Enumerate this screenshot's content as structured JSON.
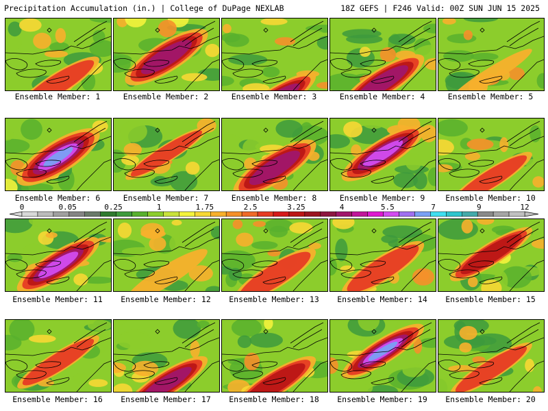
{
  "header": {
    "left": "Precipitation Accumulation (in.) | College of DuPage NEXLAB",
    "right": "18Z GEFS | F246 Valid: 00Z SUN JUN 15 2025"
  },
  "panels": [
    {
      "label": "Ensemble Member: 1",
      "max": 3.2,
      "band": 0.9,
      "core": 0.62
    },
    {
      "label": "Ensemble Member: 2",
      "max": 4.2,
      "band": 1.2,
      "core": 0.25
    },
    {
      "label": "Ensemble Member: 3",
      "max": 4.5,
      "band": 1.0,
      "core": 0.85
    },
    {
      "label": "Ensemble Member: 4",
      "max": 4.2,
      "band": 1.1,
      "core": 0.6
    },
    {
      "label": "Ensemble Member: 5",
      "max": 2.4,
      "band": 0.6,
      "core": 0.5
    },
    {
      "label": "Ensemble Member: 6",
      "max": 7.0,
      "band": 1.3,
      "core": 0.25
    },
    {
      "label": "Ensemble Member: 7",
      "max": 3.2,
      "band": 0.7,
      "core": 0.2
    },
    {
      "label": "Ensemble Member: 8",
      "max": 4.2,
      "band": 1.2,
      "core": 0.4
    },
    {
      "label": "Ensemble Member: 9",
      "max": 5.5,
      "band": 1.1,
      "core": 0.2
    },
    {
      "label": "Ensemble Member: 10",
      "max": 3.2,
      "band": 0.8,
      "core": 0.55
    },
    {
      "label": "Ensemble Member: 11",
      "max": 5.5,
      "band": 1.1,
      "core": 0.35
    },
    {
      "label": "Ensemble Member: 12",
      "max": 2.5,
      "band": 0.8,
      "core": 0.5
    },
    {
      "label": "Ensemble Member: 13",
      "max": 3.25,
      "band": 1.0,
      "core": 0.5
    },
    {
      "label": "Ensemble Member: 14",
      "max": 3.25,
      "band": 1.0,
      "core": 0.4
    },
    {
      "label": "Ensemble Member: 15",
      "max": 4.0,
      "band": 0.9,
      "core": 0.2
    },
    {
      "label": "Ensemble Member: 16",
      "max": 3.2,
      "band": 0.8,
      "core": 0.3
    },
    {
      "label": "Ensemble Member: 17",
      "max": 4.2,
      "band": 1.0,
      "core": 0.6
    },
    {
      "label": "Ensemble Member: 18",
      "max": 4.0,
      "band": 1.0,
      "core": 0.6
    },
    {
      "label": "Ensemble Member: 19",
      "max": 7.0,
      "band": 1.0,
      "core": 0.15
    },
    {
      "label": "Ensemble Member: 20",
      "max": 3.2,
      "band": 0.8,
      "core": 0.4
    }
  ],
  "legend": {
    "tick_labels": [
      "0",
      "0.05",
      "0.25",
      "1",
      "1.75",
      "2.5",
      "3.25",
      "4",
      "5.5",
      "7",
      "9",
      "12"
    ],
    "colors": [
      "#d8d8d8",
      "#bcbcbc",
      "#a0a0a0",
      "#858585",
      "#6a7a6a",
      "#2f7a2f",
      "#3d9a3d",
      "#58b02e",
      "#8ccd2c",
      "#c9e23a",
      "#f3f33c",
      "#f7d834",
      "#f7b02c",
      "#f5902a",
      "#ef6a28",
      "#e63c24",
      "#d61a1a",
      "#bb1616",
      "#9a1420",
      "#8c1640",
      "#a0166a",
      "#c0169a",
      "#de1ad0",
      "#d24cf0",
      "#a070f0",
      "#7aa0f4",
      "#40dff0",
      "#30c4cc",
      "#44aaaa",
      "#8a8a8a",
      "#a5a5a5",
      "#c0c0c0"
    ]
  }
}
